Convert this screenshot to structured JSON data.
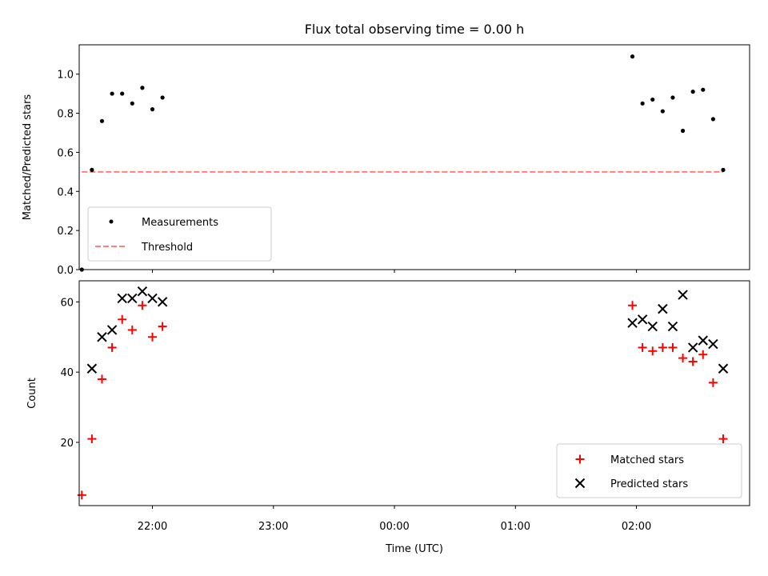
{
  "chart_data": [
    {
      "type": "scatter",
      "title": "Flux total observing time = 0.00 h",
      "xlabel": "",
      "ylabel": "Matched/Predicted stars",
      "ylim": [
        0,
        1.15
      ],
      "yticks": [
        0.0,
        0.2,
        0.4,
        0.6,
        0.8,
        1.0
      ],
      "ytick_labels": [
        "0.0",
        "0.2",
        "0.4",
        "0.6",
        "0.8",
        "1.0"
      ],
      "legend_position": "lower-left",
      "series": [
        {
          "name": "Measurements",
          "marker": "dot",
          "color": "#000000",
          "x": [
            "21:25",
            "21:30",
            "21:35",
            "21:40",
            "21:45",
            "21:50",
            "21:55",
            "22:00",
            "22:05",
            "01:58",
            "02:03",
            "02:08",
            "02:13",
            "02:18",
            "02:23",
            "02:28",
            "02:33",
            "02:38",
            "02:43"
          ],
          "y": [
            0.0,
            0.51,
            0.76,
            0.9,
            0.9,
            0.85,
            0.93,
            0.82,
            0.88,
            1.09,
            0.85,
            0.87,
            0.81,
            0.88,
            0.71,
            0.91,
            0.92,
            0.77,
            0.51
          ]
        },
        {
          "name": "Threshold",
          "style": "dashed",
          "color": "#ff7f7f",
          "x": [
            "21:25",
            "02:43"
          ],
          "y": [
            0.5,
            0.5
          ]
        }
      ]
    },
    {
      "type": "scatter",
      "xlabel": "Time (UTC)",
      "ylabel": "Count",
      "ylim": [
        2,
        66
      ],
      "yticks": [
        20,
        40,
        60
      ],
      "ytick_labels": [
        "20",
        "40",
        "60"
      ],
      "xticks": [
        "22:00",
        "23:00",
        "00:00",
        "01:00",
        "02:00"
      ],
      "legend_position": "lower-right",
      "series": [
        {
          "name": "Matched stars",
          "marker": "plus",
          "color": "#ff0000",
          "x": [
            "21:25",
            "21:30",
            "21:35",
            "21:40",
            "21:45",
            "21:50",
            "21:55",
            "22:00",
            "22:05",
            "01:58",
            "02:03",
            "02:08",
            "02:13",
            "02:18",
            "02:23",
            "02:28",
            "02:33",
            "02:38",
            "02:43"
          ],
          "y": [
            5,
            21,
            38,
            47,
            55,
            52,
            59,
            50,
            53,
            59,
            47,
            46,
            47,
            47,
            44,
            43,
            45,
            37,
            21
          ]
        },
        {
          "name": "Predicted stars",
          "marker": "x",
          "color": "#000000",
          "x": [
            "21:30",
            "21:35",
            "21:40",
            "21:45",
            "21:50",
            "21:55",
            "22:00",
            "22:05",
            "01:58",
            "02:03",
            "02:08",
            "02:13",
            "02:18",
            "02:23",
            "02:28",
            "02:33",
            "02:38",
            "02:43"
          ],
          "y": [
            41,
            50,
            52,
            61,
            61,
            63,
            61,
            60,
            54,
            55,
            53,
            58,
            53,
            62,
            47,
            49,
            48,
            41
          ]
        }
      ]
    }
  ]
}
